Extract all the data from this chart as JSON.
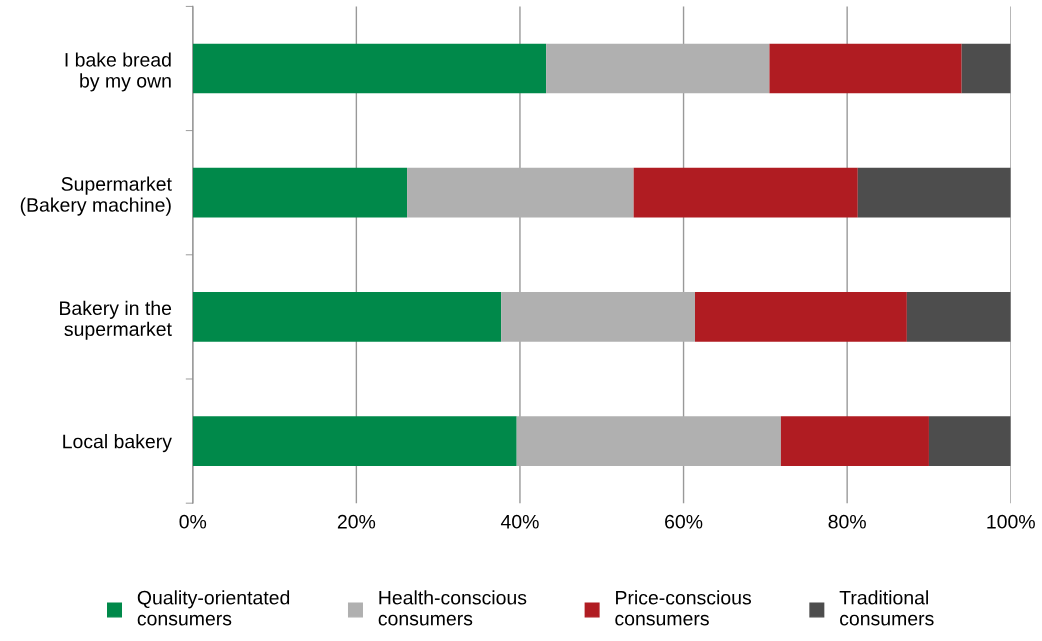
{
  "chart_data": {
    "type": "bar",
    "orientation": "horizontal",
    "stacked": true,
    "categories": [
      "I bake bread\nby my own",
      "Supermarket\n(Bakery machine)",
      "Bakery in the\nsupermarket",
      "Local bakery"
    ],
    "series": [
      {
        "name": "Quality-orientated\nconsumers",
        "color": "#00894a",
        "values": [
          43.2,
          26.2,
          37.7,
          39.6
        ]
      },
      {
        "name": "Health-conscious\nconsumers",
        "color": "#b0b0b0",
        "values": [
          27.3,
          27.7,
          23.7,
          32.3
        ]
      },
      {
        "name": "Price-conscious\nconsumers",
        "color": "#b01c22",
        "values": [
          23.5,
          27.4,
          25.9,
          18.1
        ]
      },
      {
        "name": "Traditional\nconsumers",
        "color": "#4d4d4d",
        "values": [
          6.0,
          18.7,
          12.7,
          10.0
        ]
      }
    ],
    "xlim": [
      0,
      100
    ],
    "xticks": [
      {
        "value": 0,
        "label": "0%"
      },
      {
        "value": 20,
        "label": "20%"
      },
      {
        "value": 40,
        "label": "40%"
      },
      {
        "value": 60,
        "label": "60%"
      },
      {
        "value": 80,
        "label": "80%"
      },
      {
        "value": 100,
        "label": "100%"
      }
    ],
    "grid": "x",
    "legend": "bottom"
  }
}
